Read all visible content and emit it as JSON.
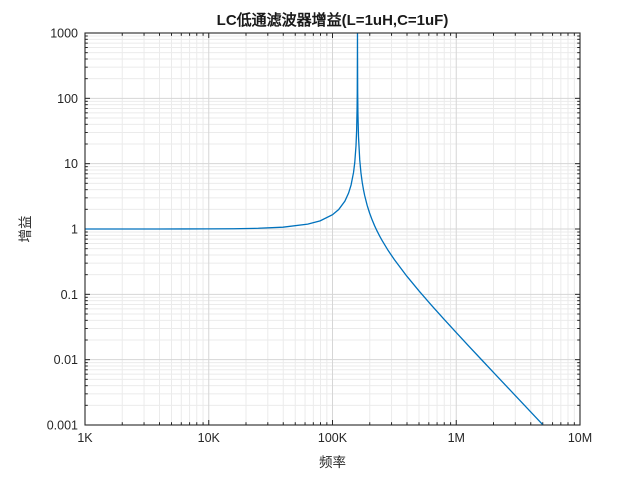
{
  "chart_data": {
    "type": "line",
    "title": "LC低通滤波器增益(L=1uH,C=1uF)",
    "xlabel": "频率",
    "ylabel": "增益",
    "x_scale": "log",
    "y_scale": "log",
    "xlim": [
      1000,
      10000000
    ],
    "ylim": [
      0.001,
      1000
    ],
    "x_ticks": [
      1000,
      10000,
      100000,
      1000000,
      10000000
    ],
    "x_tick_labels": [
      "1K",
      "10K",
      "100K",
      "1M",
      "10M"
    ],
    "y_ticks": [
      0.001,
      0.01,
      0.1,
      1,
      10,
      100,
      1000
    ],
    "y_tick_labels": [
      "0.001",
      "0.01",
      "0.1",
      "1",
      "10",
      "100",
      "1000"
    ],
    "grid": {
      "major": true,
      "minor": true
    },
    "legend": "none",
    "line_color": "#0072BD",
    "resonance_hz": 159155,
    "series": [
      {
        "name": "gain",
        "points": [
          [
            1000,
            1.00004
          ],
          [
            1585,
            1.0001
          ],
          [
            2512,
            1.00025
          ],
          [
            3981,
            1.00063
          ],
          [
            6310,
            1.00157
          ],
          [
            10000,
            1.00396
          ],
          [
            15849,
            1.01002
          ],
          [
            25119,
            1.02555
          ],
          [
            39811,
            1.06674
          ],
          [
            63096,
            1.18648
          ],
          [
            79433,
            1.33174
          ],
          [
            100000,
            1.65232
          ],
          [
            112202,
            1.98811
          ],
          [
            125893,
            2.67166
          ],
          [
            134896,
            3.55103
          ],
          [
            141254,
            4.71054
          ],
          [
            147911,
            7.3363
          ],
          [
            151356,
            10.4603
          ],
          [
            154882,
            18.88
          ],
          [
            156675,
            32.35
          ],
          [
            158000,
            69.15
          ],
          [
            158489,
            119.9
          ],
          [
            159000,
            514.7
          ],
          [
            159155,
            1000000
          ],
          [
            159300,
            548.6
          ],
          [
            159800,
            123.1
          ],
          [
            160500,
            58.9
          ],
          [
            162181,
            26.05
          ],
          [
            165959,
            11.45
          ],
          [
            169824,
            7.217
          ],
          [
            173780,
            5.202
          ],
          [
            177828,
            4.0253
          ],
          [
            181970,
            3.2546
          ],
          [
            190546,
            2.3075
          ],
          [
            199526,
            1.74927
          ],
          [
            208930,
            1.38255
          ],
          [
            218776,
            1.12415
          ],
          [
            229087,
            0.93294
          ],
          [
            239883,
            0.78632
          ],
          [
            251189,
            0.67074
          ],
          [
            281838,
            0.46829
          ],
          [
            316228,
            0.33927
          ],
          [
            398107,
            0.19026
          ],
          [
            501187,
            0.11216
          ],
          [
            630957,
            0.06795
          ],
          [
            794328,
            0.04183
          ],
          [
            1000000,
            0.02599
          ],
          [
            1258925,
            0.01624
          ],
          [
            1584893,
            0.01019
          ],
          [
            1995262,
            0.0064
          ],
          [
            2511886,
            0.00403
          ],
          [
            3162278,
            0.00254
          ],
          [
            3981072,
            0.0016
          ],
          [
            5000000,
            0.00101
          ]
        ]
      }
    ]
  }
}
